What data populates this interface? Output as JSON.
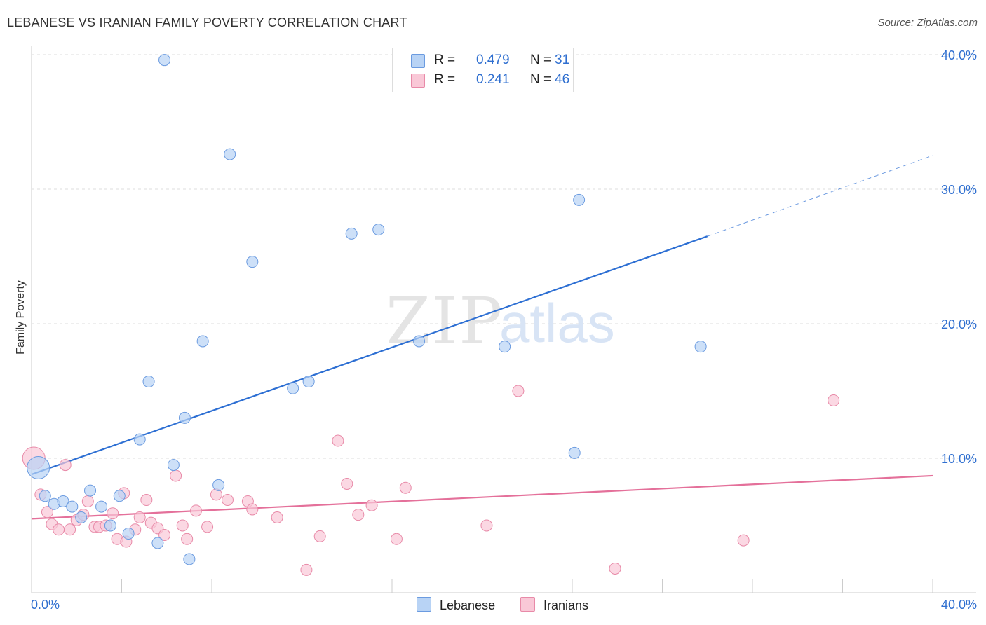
{
  "title": "LEBANESE VS IRANIAN FAMILY POVERTY CORRELATION CHART",
  "source": "Source: ZipAtlas.com",
  "watermark": {
    "zip": "ZIP",
    "atlas": "atlas"
  },
  "legend": {
    "rows": [
      {
        "r_label": "R =",
        "r_value": "0.479",
        "n_label": "N =",
        "n_value": "31"
      },
      {
        "r_label": "R =",
        "r_value": "0.241",
        "n_label": "N =",
        "n_value": "46"
      }
    ]
  },
  "colors": {
    "lebanese_fill": "#b8d3f5",
    "lebanese_stroke": "#6b9be0",
    "lebanese_line": "#2d6fd3",
    "iranian_fill": "#f9c8d7",
    "iranian_stroke": "#e88aa8",
    "iranian_line": "#e4709a",
    "grid": "#dddddd",
    "tick_label": "#2f6fd0"
  },
  "chart_data": {
    "type": "scatter",
    "title": "LEBANESE VS IRANIAN FAMILY POVERTY CORRELATION CHART",
    "xlabel": "",
    "ylabel": "Family Poverty",
    "xlim": [
      0,
      40
    ],
    "ylim": [
      0,
      40
    ],
    "x_tick_labels": [
      "0.0%",
      "40.0%"
    ],
    "y_tick_labels": [
      "10.0%",
      "20.0%",
      "30.0%",
      "40.0%"
    ],
    "y_ticks": [
      10,
      20,
      30,
      40
    ],
    "grid": true,
    "legend_position": "top-center",
    "series": [
      {
        "name": "Lebanese",
        "r": 0.479,
        "n": 31,
        "trend": {
          "x0": 0,
          "y0": 8.8,
          "x1": 30,
          "y1": 26.5,
          "dashed_to_x": 40,
          "dashed_to_y": 32.5
        },
        "points": [
          [
            0.3,
            9.3,
            "large"
          ],
          [
            0.6,
            7.2
          ],
          [
            1.0,
            6.6
          ],
          [
            1.4,
            6.8
          ],
          [
            1.8,
            6.4
          ],
          [
            2.2,
            5.6
          ],
          [
            2.6,
            7.6
          ],
          [
            3.1,
            6.4
          ],
          [
            3.5,
            5.0
          ],
          [
            3.9,
            7.2
          ],
          [
            4.3,
            4.4
          ],
          [
            4.8,
            11.4
          ],
          [
            5.2,
            15.7
          ],
          [
            5.6,
            3.7
          ],
          [
            5.9,
            39.6
          ],
          [
            6.3,
            9.5
          ],
          [
            6.8,
            13.0
          ],
          [
            7.0,
            2.5
          ],
          [
            7.6,
            18.7
          ],
          [
            8.3,
            8.0
          ],
          [
            8.8,
            32.6
          ],
          [
            9.8,
            24.6
          ],
          [
            11.6,
            15.2
          ],
          [
            12.3,
            15.7
          ],
          [
            14.2,
            26.7
          ],
          [
            15.4,
            27.0
          ],
          [
            17.2,
            18.7
          ],
          [
            21.0,
            18.3
          ],
          [
            24.1,
            10.4
          ],
          [
            24.3,
            29.2
          ],
          [
            29.7,
            18.3
          ]
        ]
      },
      {
        "name": "Iranians",
        "r": 0.241,
        "n": 46,
        "trend": {
          "x0": 0,
          "y0": 5.5,
          "x1": 40,
          "y1": 8.7
        },
        "points": [
          [
            0.1,
            10.0,
            "large"
          ],
          [
            0.4,
            7.3
          ],
          [
            0.7,
            6.0
          ],
          [
            0.9,
            5.1
          ],
          [
            1.2,
            4.7
          ],
          [
            1.5,
            9.5
          ],
          [
            1.7,
            4.7
          ],
          [
            2.0,
            5.4
          ],
          [
            2.3,
            5.8
          ],
          [
            2.5,
            6.8
          ],
          [
            2.8,
            4.9
          ],
          [
            3.0,
            4.9
          ],
          [
            3.3,
            5.0
          ],
          [
            3.6,
            5.9
          ],
          [
            3.8,
            4.0
          ],
          [
            4.1,
            7.4
          ],
          [
            4.2,
            3.8
          ],
          [
            4.6,
            4.7
          ],
          [
            4.8,
            5.6
          ],
          [
            5.1,
            6.9
          ],
          [
            5.3,
            5.2
          ],
          [
            5.6,
            4.8
          ],
          [
            5.9,
            4.3
          ],
          [
            6.4,
            8.7
          ],
          [
            6.7,
            5.0
          ],
          [
            6.9,
            4.0
          ],
          [
            7.3,
            6.1
          ],
          [
            7.8,
            4.9
          ],
          [
            8.2,
            7.3
          ],
          [
            8.7,
            6.9
          ],
          [
            9.6,
            6.8
          ],
          [
            9.8,
            6.2
          ],
          [
            10.9,
            5.6
          ],
          [
            12.2,
            1.7
          ],
          [
            12.8,
            4.2
          ],
          [
            13.6,
            11.3
          ],
          [
            14.0,
            8.1
          ],
          [
            14.5,
            5.8
          ],
          [
            15.1,
            6.5
          ],
          [
            16.2,
            4.0
          ],
          [
            16.6,
            7.8
          ],
          [
            20.2,
            5.0
          ],
          [
            21.6,
            15.0
          ],
          [
            25.9,
            1.8
          ],
          [
            31.6,
            3.9
          ],
          [
            35.6,
            14.3
          ]
        ]
      }
    ]
  }
}
